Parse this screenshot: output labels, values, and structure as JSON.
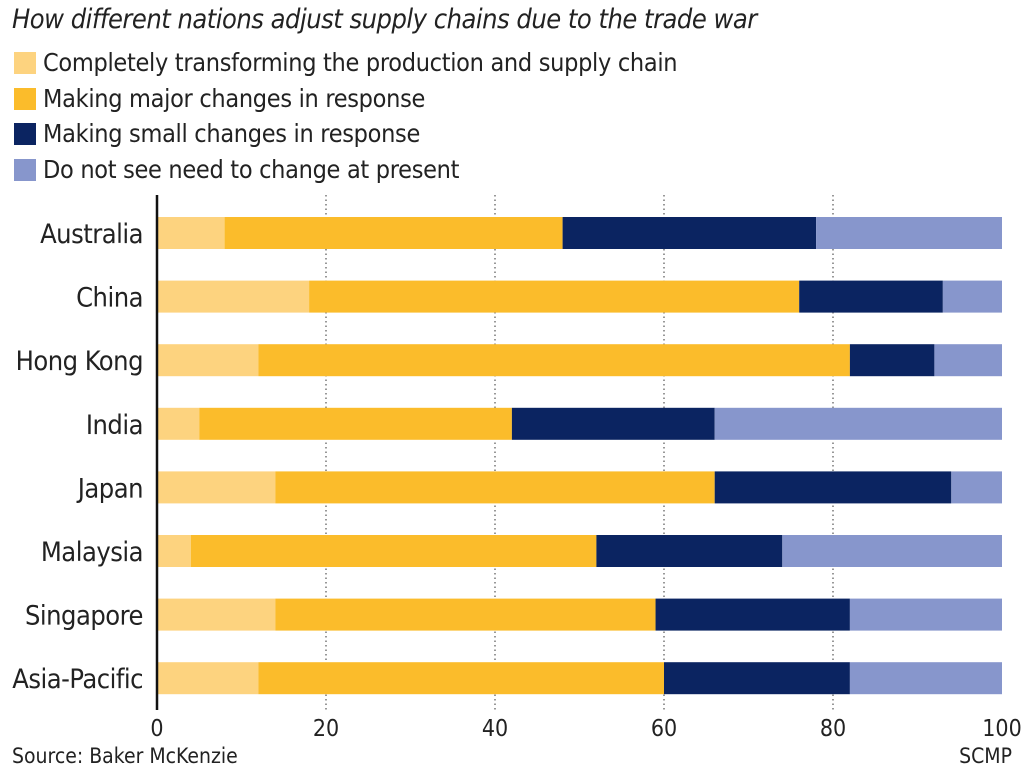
{
  "chart_data": {
    "type": "bar",
    "orientation": "horizontal",
    "stacked": true,
    "title": "How different nations adjust supply chains due to the trade war",
    "categories": [
      "Australia",
      "China",
      "Hong Kong",
      "India",
      "Japan",
      "Malaysia",
      "Singapore",
      "Asia-Pacific"
    ],
    "series": [
      {
        "name": "Completely transforming the production and supply chain",
        "color": "#fdd37f",
        "values": [
          8,
          18,
          12,
          5,
          14,
          4,
          14,
          12
        ]
      },
      {
        "name": "Making major changes in response",
        "color": "#fbbc2b",
        "values": [
          40,
          58,
          70,
          37,
          52,
          48,
          45,
          48
        ]
      },
      {
        "name": "Making small changes in response",
        "color": "#0b2461",
        "values": [
          30,
          17,
          10,
          24,
          28,
          22,
          23,
          22
        ]
      },
      {
        "name": "Do not see need to change at present",
        "color": "#8796cc",
        "values": [
          22,
          7,
          8,
          34,
          6,
          26,
          18,
          18
        ]
      }
    ],
    "xlim": [
      0,
      100
    ],
    "xticks": [
      "0",
      "20",
      "40",
      "60",
      "80",
      "100"
    ],
    "grid": "vertical dotted",
    "legend": "top-left",
    "source": "Source: Baker McKenzie",
    "credit": "SCMP"
  }
}
